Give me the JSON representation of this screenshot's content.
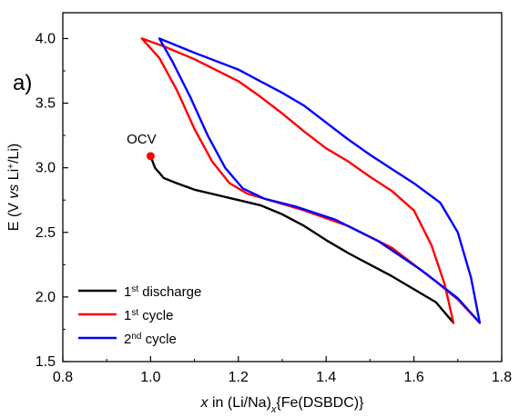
{
  "chart_data": {
    "type": "line",
    "panel_label": "a)",
    "xlabel": {
      "italic": "x",
      "rest": " in (Li/Na)",
      "sub": "x",
      "tail": "{Fe(DSBDC)}"
    },
    "ylabel": {
      "pre": "E (V ",
      "italic": "vs",
      "mid": " Li",
      "sup": "+",
      "post": "/Li)"
    },
    "xlim": [
      0.8,
      1.8
    ],
    "ylim": [
      1.5,
      4.2
    ],
    "xticks": [
      0.8,
      1.0,
      1.2,
      1.4,
      1.6,
      1.8
    ],
    "xtick_labels": [
      "0.8",
      "1.0",
      "1.2",
      "1.4",
      "1.6",
      "1.8"
    ],
    "yticks": [
      1.5,
      2.0,
      2.5,
      3.0,
      3.5,
      4.0
    ],
    "ytick_labels": [
      "1.5",
      "2.0",
      "2.5",
      "3.0",
      "3.5",
      "4.0"
    ],
    "annotation": {
      "text": "OCV",
      "x": 1.0,
      "y": 3.09
    },
    "legend_position": "bottom-left",
    "series": [
      {
        "name_pre": "1",
        "name_sup": "st",
        "name_post": " discharge",
        "color": "#000000",
        "points": [
          [
            1.0,
            3.09
          ],
          [
            1.01,
            3.0
          ],
          [
            1.03,
            2.92
          ],
          [
            1.06,
            2.88
          ],
          [
            1.1,
            2.83
          ],
          [
            1.15,
            2.79
          ],
          [
            1.2,
            2.75
          ],
          [
            1.25,
            2.71
          ],
          [
            1.3,
            2.64
          ],
          [
            1.35,
            2.55
          ],
          [
            1.4,
            2.44
          ],
          [
            1.45,
            2.34
          ],
          [
            1.5,
            2.25
          ],
          [
            1.55,
            2.16
          ],
          [
            1.6,
            2.06
          ],
          [
            1.65,
            1.96
          ],
          [
            1.69,
            1.8
          ]
        ]
      },
      {
        "name_pre": "1",
        "name_sup": "st",
        "name_post": " cycle",
        "color": "#ff0000",
        "points": [
          [
            1.69,
            1.8
          ],
          [
            1.67,
            2.1
          ],
          [
            1.64,
            2.4
          ],
          [
            1.6,
            2.67
          ],
          [
            1.55,
            2.82
          ],
          [
            1.5,
            2.93
          ],
          [
            1.45,
            3.05
          ],
          [
            1.4,
            3.15
          ],
          [
            1.35,
            3.28
          ],
          [
            1.3,
            3.42
          ],
          [
            1.25,
            3.55
          ],
          [
            1.2,
            3.67
          ],
          [
            1.1,
            3.84
          ],
          [
            1.03,
            3.94
          ],
          [
            0.98,
            4.0
          ],
          [
            1.02,
            3.85
          ],
          [
            1.06,
            3.6
          ],
          [
            1.1,
            3.3
          ],
          [
            1.14,
            3.05
          ],
          [
            1.18,
            2.88
          ],
          [
            1.22,
            2.8
          ],
          [
            1.28,
            2.74
          ],
          [
            1.35,
            2.67
          ],
          [
            1.45,
            2.55
          ],
          [
            1.55,
            2.38
          ],
          [
            1.65,
            2.12
          ],
          [
            1.7,
            1.98
          ],
          [
            1.75,
            1.8
          ]
        ]
      },
      {
        "name_pre": "2",
        "name_sup": "nd",
        "name_post": " cycle",
        "color": "#0000ff",
        "points": [
          [
            1.75,
            1.8
          ],
          [
            1.73,
            2.15
          ],
          [
            1.7,
            2.5
          ],
          [
            1.66,
            2.73
          ],
          [
            1.6,
            2.88
          ],
          [
            1.55,
            2.99
          ],
          [
            1.5,
            3.1
          ],
          [
            1.45,
            3.22
          ],
          [
            1.4,
            3.35
          ],
          [
            1.35,
            3.48
          ],
          [
            1.3,
            3.58
          ],
          [
            1.25,
            3.67
          ],
          [
            1.2,
            3.76
          ],
          [
            1.1,
            3.89
          ],
          [
            1.02,
            4.0
          ],
          [
            1.05,
            3.82
          ],
          [
            1.09,
            3.55
          ],
          [
            1.13,
            3.25
          ],
          [
            1.17,
            3.0
          ],
          [
            1.21,
            2.84
          ],
          [
            1.26,
            2.76
          ],
          [
            1.33,
            2.7
          ],
          [
            1.42,
            2.6
          ],
          [
            1.52,
            2.43
          ],
          [
            1.62,
            2.2
          ],
          [
            1.7,
            1.99
          ],
          [
            1.75,
            1.8
          ]
        ]
      }
    ]
  }
}
